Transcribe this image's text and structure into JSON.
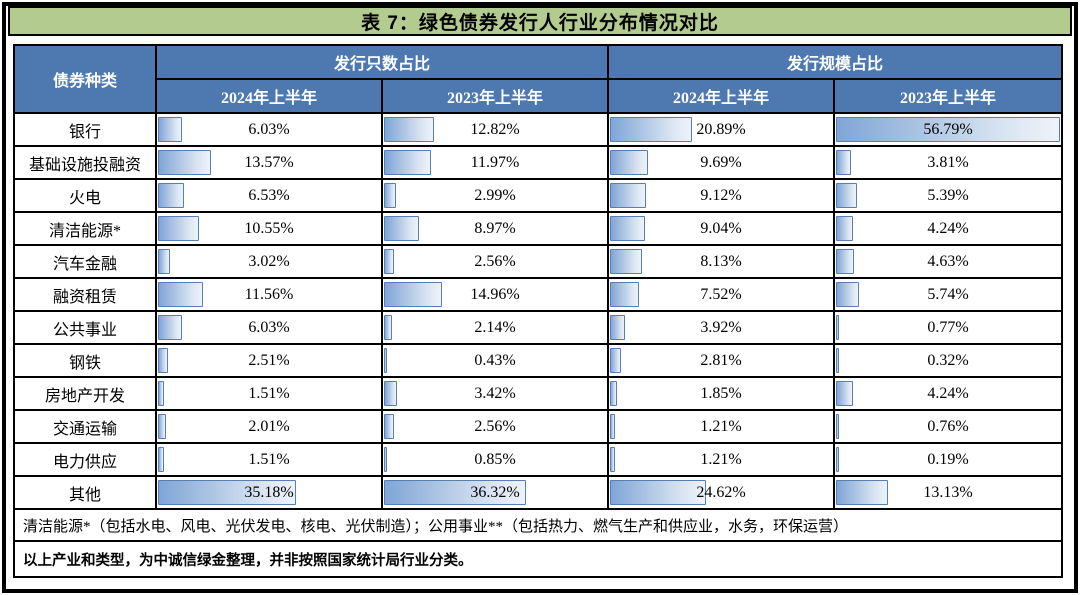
{
  "title": "表 7：绿色债券发行人行业分布情况对比",
  "table": {
    "corner_header": "债券种类",
    "group_headers": [
      "发行只数占比",
      "发行规模占比"
    ],
    "sub_headers": [
      "2024年上半年",
      "2023年上半年",
      "2024年上半年",
      "2023年上半年"
    ],
    "rows": [
      {
        "label": "银行",
        "values": [
          6.03,
          12.82,
          20.89,
          56.79
        ]
      },
      {
        "label": "基础设施投融资",
        "values": [
          13.57,
          11.97,
          9.69,
          3.81
        ]
      },
      {
        "label": "火电",
        "values": [
          6.53,
          2.99,
          9.12,
          5.39
        ]
      },
      {
        "label": "清洁能源*",
        "values": [
          10.55,
          8.97,
          9.04,
          4.24
        ]
      },
      {
        "label": "汽车金融",
        "values": [
          3.02,
          2.56,
          8.13,
          4.63
        ]
      },
      {
        "label": "融资租赁",
        "values": [
          11.56,
          14.96,
          7.52,
          5.74
        ]
      },
      {
        "label": "公共事业",
        "values": [
          6.03,
          2.14,
          3.92,
          0.77
        ]
      },
      {
        "label": "钢铁",
        "values": [
          2.51,
          0.43,
          2.81,
          0.32
        ]
      },
      {
        "label": "房地产开发",
        "values": [
          1.51,
          3.42,
          1.85,
          4.24
        ]
      },
      {
        "label": "交通运输",
        "values": [
          2.01,
          2.56,
          1.21,
          0.76
        ]
      },
      {
        "label": "电力供应",
        "values": [
          1.51,
          0.85,
          1.21,
          0.19
        ]
      },
      {
        "label": "其他",
        "values": [
          35.18,
          36.32,
          24.62,
          13.13
        ]
      }
    ],
    "bar_scale_max": 57.3,
    "notes": [
      "清洁能源*（包括水电、风电、光伏发电、核电、光伏制造）；公用事业**（包括热力、燃气生产和供应业，水务，环保运营）",
      "以上产业和类型，为中诚信绿金整理，并非按照国家统计局行业分类。"
    ]
  },
  "colors": {
    "title_background": "#b4cb90",
    "header_background": "#4d79b0",
    "header_text": "#ffffff",
    "bar_border": "#567fb3",
    "bar_gradient_start": "#7fa5d7",
    "bar_gradient_end": "#eef3fa",
    "frame": "#000000"
  },
  "chart_data": {
    "type": "table",
    "title": "表 7：绿色债券发行人行业分布情况对比",
    "categories": [
      "银行",
      "基础设施投融资",
      "火电",
      "清洁能源*",
      "汽车金融",
      "融资租赁",
      "公共事业",
      "钢铁",
      "房地产开发",
      "交通运输",
      "电力供应",
      "其他"
    ],
    "series": [
      {
        "name": "发行只数占比 2024年上半年",
        "values": [
          6.03,
          13.57,
          6.53,
          10.55,
          3.02,
          11.56,
          6.03,
          2.51,
          1.51,
          2.01,
          1.51,
          35.18
        ]
      },
      {
        "name": "发行只数占比 2023年上半年",
        "values": [
          12.82,
          11.97,
          2.99,
          8.97,
          2.56,
          14.96,
          2.14,
          0.43,
          3.42,
          2.56,
          0.85,
          36.32
        ]
      },
      {
        "name": "发行规模占比 2024年上半年",
        "values": [
          20.89,
          9.69,
          9.12,
          9.04,
          8.13,
          7.52,
          3.92,
          2.81,
          1.85,
          1.21,
          1.21,
          24.62
        ]
      },
      {
        "name": "发行规模占比 2023年上半年",
        "values": [
          56.79,
          3.81,
          5.39,
          4.24,
          4.63,
          5.74,
          0.77,
          0.32,
          4.24,
          0.76,
          0.19,
          13.13
        ]
      }
    ],
    "unit": "%",
    "note": "cells contain left-aligned blue gradient data bars proportional to value; all columns share one scale with max ≈ 56.79%"
  }
}
